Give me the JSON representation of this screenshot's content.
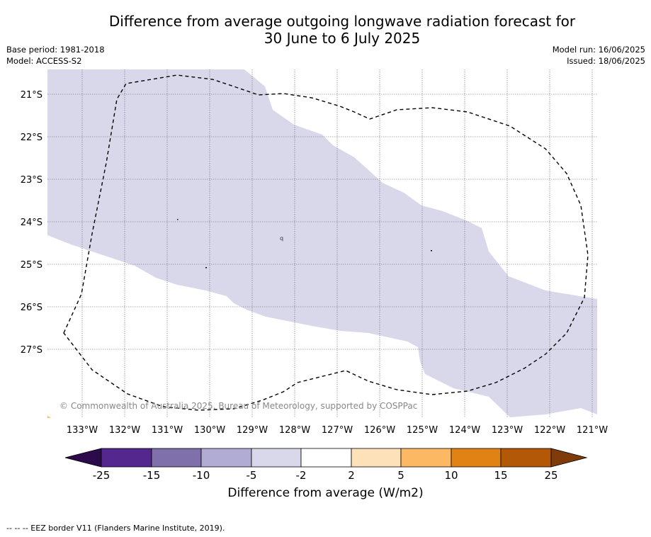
{
  "title_line1": "Difference from average outgoing longwave radiation forecast for",
  "title_line2": "30 June to 6 July 2025",
  "base_period": "Base period: 1981-2018",
  "model": "Model: ACCESS-S2",
  "model_run": "Model run: 16/06/2025",
  "issued": "Issued: 18/06/2025",
  "copyright": "© Commonwealth of Australia 2025, Bureau of Meteorology, supported by COSPPac",
  "lat_labels": [
    "21°S",
    "22°S",
    "23°S",
    "24°S",
    "25°S",
    "26°S",
    "27°S"
  ],
  "lon_labels": [
    "133°W",
    "132°W",
    "131°W",
    "130°W",
    "129°W",
    "128°W",
    "127°W",
    "126°W",
    "125°W",
    "124°W",
    "123°W",
    "122°W",
    "121°W"
  ],
  "colorbar": {
    "label": "Difference from average (W/m2)",
    "ticks": [
      "-25",
      "-15",
      "-10",
      "-5",
      "-2",
      "2",
      "5",
      "10",
      "15",
      "25"
    ],
    "colors": [
      "#2d0a4b",
      "#54278f",
      "#7f6faa",
      "#b1acd3",
      "#d8d8ea",
      "#ffffff",
      "#fde1b8",
      "#fdb863",
      "#e08214",
      "#b35806",
      "#7f3b08"
    ]
  },
  "map": {
    "field_color": "#d8d8ea",
    "eez_line_color": "#000000"
  },
  "eez_note": "--  --  -- EEZ border V11 (Flanders Marine Institute, 2019)."
}
